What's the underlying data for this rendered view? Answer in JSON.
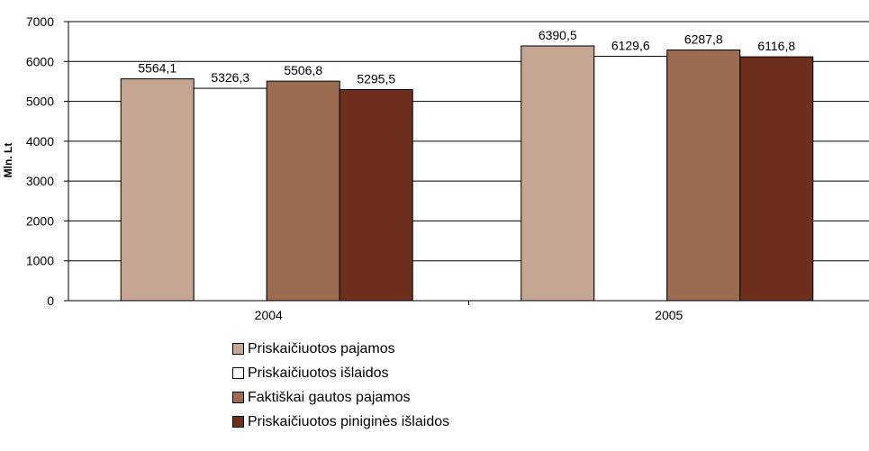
{
  "chart_data": {
    "type": "bar",
    "title": "",
    "xlabel": "",
    "ylabel": "Mln. Lt",
    "categories": [
      "2004",
      "2005"
    ],
    "ylim": [
      0,
      7000
    ],
    "yticks": [
      "0",
      "1000",
      "2000",
      "3000",
      "4000",
      "5000",
      "6000",
      "7000"
    ],
    "grid": true,
    "legend_position": "bottom",
    "series": [
      {
        "name": "Priskaičiuotos pajamos",
        "values": [
          5564.1,
          6390.5
        ],
        "labels": [
          "5564,1",
          "6390,5"
        ],
        "color": "#c4a692"
      },
      {
        "name": "Priskaičiuotos išlaidos",
        "values": [
          5326.3,
          6129.6
        ],
        "labels": [
          "5326,3",
          "6129,6"
        ],
        "color": "#ffffff"
      },
      {
        "name": "Faktiškai gautos pajamos",
        "values": [
          5506.8,
          6287.8
        ],
        "labels": [
          "5506,8",
          "6287,8"
        ],
        "color": "#9b6b52"
      },
      {
        "name": "Priskaičiuotos piniginės išlaidos",
        "values": [
          5295.5,
          6116.8
        ],
        "labels": [
          "5295,5",
          "6116,8"
        ],
        "color": "#6e2f1c"
      }
    ]
  }
}
